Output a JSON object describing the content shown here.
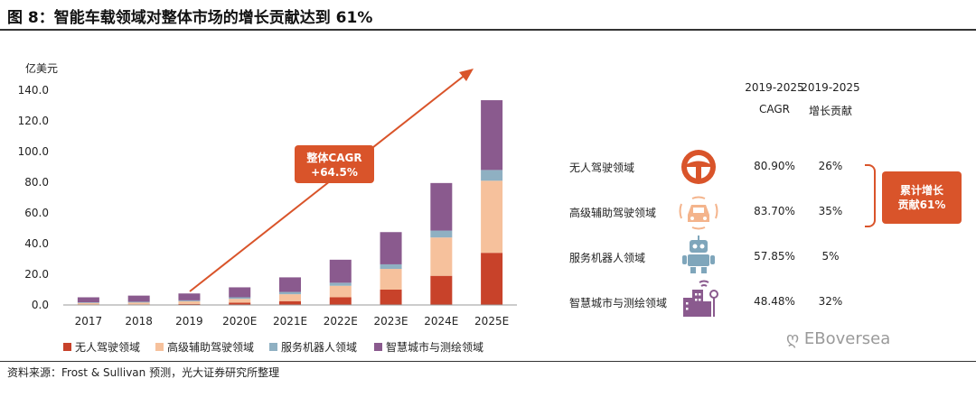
{
  "title": "图 8：智能车载领域对整体市场的增长贡献达到 61%",
  "source": "资料来源：Frost & Sullivan 预测，光大证券研究所整理",
  "watermark": "EBoversea",
  "chart_data": {
    "type": "bar",
    "stacked": true,
    "ylabel": "亿美元",
    "ylim": [
      0,
      140
    ],
    "yticks": [
      "0.0",
      "20.0",
      "40.0",
      "60.0",
      "80.0",
      "100.0",
      "120.0",
      "140.0"
    ],
    "categories": [
      "2017",
      "2018",
      "2019",
      "2020E",
      "2021E",
      "2022E",
      "2023E",
      "2024E",
      "2025E"
    ],
    "series": [
      {
        "name": "无人驾驶领域",
        "color": "#c8422a",
        "values": [
          0.3,
          0.4,
          0.6,
          1.5,
          2.5,
          5.0,
          10.0,
          19.0,
          34.0
        ]
      },
      {
        "name": "高级辅助驾驶领域",
        "color": "#f6c19c",
        "values": [
          1.0,
          1.2,
          1.8,
          2.5,
          4.5,
          7.5,
          13.5,
          25.0,
          47.0
        ]
      },
      {
        "name": "服务机器人领域",
        "color": "#8fb0c2",
        "values": [
          0.4,
          0.5,
          0.6,
          1.0,
          1.5,
          2.0,
          3.0,
          4.5,
          7.0
        ]
      },
      {
        "name": "智慧城市与测绘领域",
        "color": "#8a5a8e",
        "values": [
          3.3,
          4.0,
          4.5,
          6.5,
          9.5,
          15.0,
          21.0,
          31.0,
          45.5
        ]
      }
    ],
    "annotation": {
      "line1": "整体CAGR",
      "line2": "+64.5%"
    }
  },
  "table": {
    "headers": [
      {
        "line1": "2019-2025",
        "line2": "CAGR"
      },
      {
        "line1": "2019-2025",
        "line2": "增长贡献"
      }
    ],
    "rows": [
      {
        "label": "无人驾驶领域",
        "icon": "steering-wheel-icon",
        "cagr": "80.90%",
        "contribution": "26%"
      },
      {
        "label": "高级辅助驾驶领域",
        "icon": "car-sensor-icon",
        "cagr": "83.70%",
        "contribution": "35%"
      },
      {
        "label": "服务机器人领域",
        "icon": "robot-icon",
        "cagr": "57.85%",
        "contribution": "5%"
      },
      {
        "label": "智慧城市与测绘领域",
        "icon": "smart-city-icon",
        "cagr": "48.48%",
        "contribution": "32%"
      }
    ],
    "summary": {
      "line1": "累计增长",
      "line2": "贡献61%"
    }
  }
}
